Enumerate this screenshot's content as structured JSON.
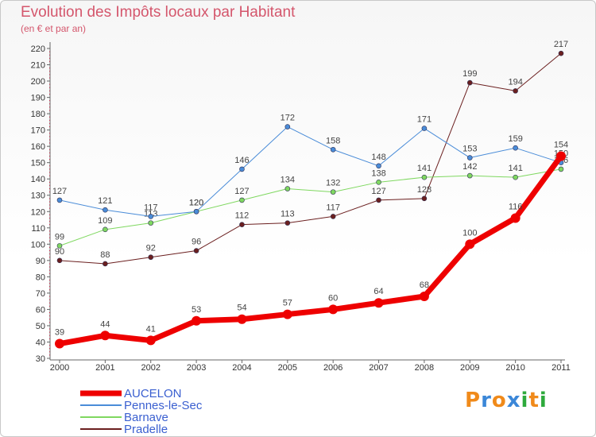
{
  "title": "Evolution des Impôts locaux par Habitant",
  "subtitle": "(en € et par an)",
  "brand": {
    "letters": [
      "P",
      "r",
      "o",
      "x",
      "i",
      "t",
      "i"
    ],
    "colors": [
      "#f08a1a",
      "#3b87d8",
      "#f08a1a",
      "#3b87d8",
      "#2eaa3c",
      "#f08a1a",
      "#2eaa3c"
    ]
  },
  "chart_data": {
    "type": "line",
    "title": "Evolution des Impôts locaux par Habitant",
    "subtitle": "(en € et par an)",
    "xlabel": "",
    "ylabel": "",
    "x": [
      "2000",
      "2001",
      "2002",
      "2003",
      "2004",
      "2005",
      "2006",
      "2007",
      "2008",
      "2009",
      "2010",
      "2011"
    ],
    "ylim": [
      30,
      220
    ],
    "yticks": [
      30,
      40,
      50,
      60,
      70,
      80,
      90,
      100,
      110,
      120,
      130,
      140,
      150,
      160,
      170,
      180,
      190,
      200,
      210,
      220
    ],
    "grid": false,
    "legend_position": "bottom-left",
    "series": [
      {
        "name": "Pradelle",
        "color": "#6b1f1f",
        "width": 1,
        "values": [
          90,
          88,
          92,
          96,
          112,
          113,
          117,
          127,
          128,
          199,
          194,
          217
        ],
        "labels": [
          "90",
          "88",
          "92",
          "96",
          "112",
          "113",
          "117",
          "127",
          "128",
          "199",
          "194",
          "217"
        ]
      },
      {
        "name": "Barnave",
        "color": "#7fd860",
        "width": 1,
        "values": [
          99,
          109,
          113,
          120,
          127,
          134,
          132,
          138,
          141,
          142,
          141,
          146
        ],
        "labels": [
          "99",
          "109",
          "113",
          "120",
          "127",
          "134",
          "132",
          "138",
          "141",
          "142",
          "141",
          "146"
        ]
      },
      {
        "name": "Pennes-le-Sec",
        "color": "#4a8cd8",
        "width": 1,
        "values": [
          127,
          121,
          117,
          120,
          146,
          172,
          158,
          148,
          171,
          153,
          159,
          150
        ],
        "labels": [
          "127",
          "121",
          "117",
          "120",
          "146",
          "172",
          "158",
          "148",
          "171",
          "153",
          "159",
          "150"
        ]
      },
      {
        "name": "AUCELON",
        "color": "#ee0000",
        "width": 7,
        "values": [
          39,
          44,
          41,
          53,
          54,
          57,
          60,
          64,
          68,
          100,
          116,
          154
        ],
        "labels": [
          "39",
          "44",
          "41",
          "53",
          "54",
          "57",
          "60",
          "64",
          "68",
          "100",
          "116",
          "154"
        ]
      }
    ],
    "legend": [
      "AUCELON",
      "Pennes-le-Sec",
      "Barnave",
      "Pradelle"
    ]
  }
}
